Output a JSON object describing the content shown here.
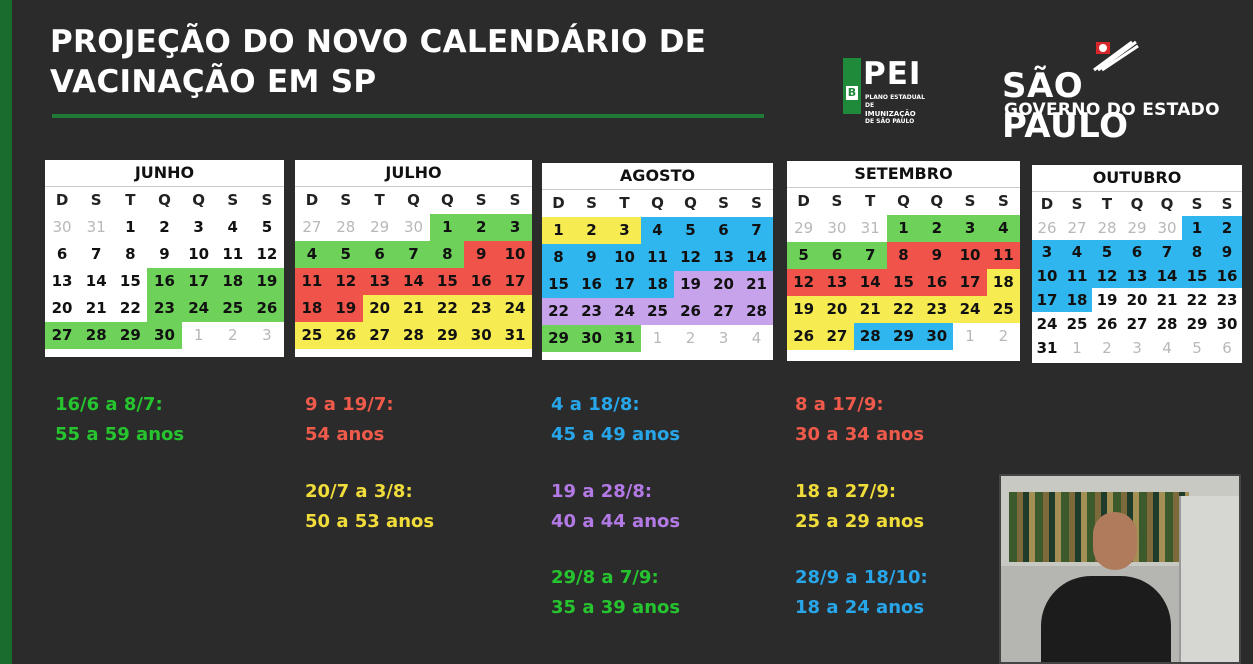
{
  "title": {
    "line1": "PROJEÇÃO DO NOVO CALENDÁRIO DE",
    "line2": "VACINAÇÃO EM SP"
  },
  "logos": {
    "pei": {
      "big": "PEI",
      "small1": "PLANO ESTADUAL DE",
      "small2": "IMUNIZAÇÃO",
      "small3": "DE SÃO PAULO"
    },
    "sp": {
      "name": "SÃO PAULO",
      "gov": "GOVERNO DO ESTADO"
    }
  },
  "weekdays": [
    "D",
    "S",
    "T",
    "Q",
    "Q",
    "S",
    "S"
  ],
  "months": [
    {
      "name": "JUNHO",
      "rows": [
        [
          [
            "30",
            "grey"
          ],
          [
            "31",
            "grey"
          ],
          [
            "1",
            ""
          ],
          [
            "2",
            ""
          ],
          [
            "3",
            ""
          ],
          [
            "4",
            ""
          ],
          [
            "5",
            ""
          ]
        ],
        [
          [
            "6",
            ""
          ],
          [
            "7",
            ""
          ],
          [
            "8",
            ""
          ],
          [
            "9",
            ""
          ],
          [
            "10",
            ""
          ],
          [
            "11",
            ""
          ],
          [
            "12",
            ""
          ]
        ],
        [
          [
            "13",
            ""
          ],
          [
            "14",
            ""
          ],
          [
            "15",
            ""
          ],
          [
            "16",
            "g"
          ],
          [
            "17",
            "g"
          ],
          [
            "18",
            "g"
          ],
          [
            "19",
            "g"
          ]
        ],
        [
          [
            "20",
            ""
          ],
          [
            "21",
            ""
          ],
          [
            "22",
            ""
          ],
          [
            "23",
            "g"
          ],
          [
            "24",
            "g"
          ],
          [
            "25",
            "g"
          ],
          [
            "26",
            "g"
          ]
        ],
        [
          [
            "27",
            "g"
          ],
          [
            "28",
            "g"
          ],
          [
            "29",
            "g"
          ],
          [
            "30",
            "g"
          ],
          [
            "1",
            "grey"
          ],
          [
            "2",
            "grey"
          ],
          [
            "3",
            "grey"
          ]
        ]
      ]
    },
    {
      "name": "JULHO",
      "rows": [
        [
          [
            "27",
            "grey"
          ],
          [
            "28",
            "grey"
          ],
          [
            "29",
            "grey"
          ],
          [
            "30",
            "grey"
          ],
          [
            "1",
            "g"
          ],
          [
            "2",
            "g"
          ],
          [
            "3",
            "g"
          ]
        ],
        [
          [
            "4",
            "g"
          ],
          [
            "5",
            "g"
          ],
          [
            "6",
            "g"
          ],
          [
            "7",
            "g"
          ],
          [
            "8",
            "g"
          ],
          [
            "9",
            "r"
          ],
          [
            "10",
            "r"
          ]
        ],
        [
          [
            "11",
            "r"
          ],
          [
            "12",
            "r"
          ],
          [
            "13",
            "r"
          ],
          [
            "14",
            "r"
          ],
          [
            "15",
            "r"
          ],
          [
            "16",
            "r"
          ],
          [
            "17",
            "r"
          ]
        ],
        [
          [
            "18",
            "r"
          ],
          [
            "19",
            "r"
          ],
          [
            "20",
            "y"
          ],
          [
            "21",
            "y"
          ],
          [
            "22",
            "y"
          ],
          [
            "23",
            "y"
          ],
          [
            "24",
            "y"
          ]
        ],
        [
          [
            "25",
            "y"
          ],
          [
            "26",
            "y"
          ],
          [
            "27",
            "y"
          ],
          [
            "28",
            "y"
          ],
          [
            "29",
            "y"
          ],
          [
            "30",
            "y"
          ],
          [
            "31",
            "y"
          ]
        ]
      ]
    },
    {
      "name": "AGOSTO",
      "rows": [
        [
          [
            "1",
            "y"
          ],
          [
            "2",
            "y"
          ],
          [
            "3",
            "y"
          ],
          [
            "4",
            "b"
          ],
          [
            "5",
            "b"
          ],
          [
            "6",
            "b"
          ],
          [
            "7",
            "b"
          ]
        ],
        [
          [
            "8",
            "b"
          ],
          [
            "9",
            "b"
          ],
          [
            "10",
            "b"
          ],
          [
            "11",
            "b"
          ],
          [
            "12",
            "b"
          ],
          [
            "13",
            "b"
          ],
          [
            "14",
            "b"
          ]
        ],
        [
          [
            "15",
            "b"
          ],
          [
            "16",
            "b"
          ],
          [
            "17",
            "b"
          ],
          [
            "18",
            "b"
          ],
          [
            "19",
            "p"
          ],
          [
            "20",
            "p"
          ],
          [
            "21",
            "p"
          ]
        ],
        [
          [
            "22",
            "p"
          ],
          [
            "23",
            "p"
          ],
          [
            "24",
            "p"
          ],
          [
            "25",
            "p"
          ],
          [
            "26",
            "p"
          ],
          [
            "27",
            "p"
          ],
          [
            "28",
            "p"
          ]
        ],
        [
          [
            "29",
            "g"
          ],
          [
            "30",
            "g"
          ],
          [
            "31",
            "g"
          ],
          [
            "1",
            "grey"
          ],
          [
            "2",
            "grey"
          ],
          [
            "3",
            "grey"
          ],
          [
            "4",
            "grey"
          ]
        ]
      ]
    },
    {
      "name": "SETEMBRO",
      "rows": [
        [
          [
            "29",
            "grey"
          ],
          [
            "30",
            "grey"
          ],
          [
            "31",
            "grey"
          ],
          [
            "1",
            "g"
          ],
          [
            "2",
            "g"
          ],
          [
            "3",
            "g"
          ],
          [
            "4",
            "g"
          ]
        ],
        [
          [
            "5",
            "g"
          ],
          [
            "6",
            "g"
          ],
          [
            "7",
            "g"
          ],
          [
            "8",
            "r"
          ],
          [
            "9",
            "r"
          ],
          [
            "10",
            "r"
          ],
          [
            "11",
            "r"
          ]
        ],
        [
          [
            "12",
            "r"
          ],
          [
            "13",
            "r"
          ],
          [
            "14",
            "r"
          ],
          [
            "15",
            "r"
          ],
          [
            "16",
            "r"
          ],
          [
            "17",
            "r"
          ],
          [
            "18",
            "y"
          ]
        ],
        [
          [
            "19",
            "y"
          ],
          [
            "20",
            "y"
          ],
          [
            "21",
            "y"
          ],
          [
            "22",
            "y"
          ],
          [
            "23",
            "y"
          ],
          [
            "24",
            "y"
          ],
          [
            "25",
            "y"
          ]
        ],
        [
          [
            "26",
            "y"
          ],
          [
            "27",
            "y"
          ],
          [
            "28",
            "b"
          ],
          [
            "29",
            "b"
          ],
          [
            "30",
            "b"
          ],
          [
            "1",
            "grey"
          ],
          [
            "2",
            "grey"
          ]
        ]
      ]
    },
    {
      "name": "OUTUBRO",
      "rows": [
        [
          [
            "26",
            "grey"
          ],
          [
            "27",
            "grey"
          ],
          [
            "28",
            "grey"
          ],
          [
            "29",
            "grey"
          ],
          [
            "30",
            "grey"
          ],
          [
            "1",
            "b"
          ],
          [
            "2",
            "b"
          ]
        ],
        [
          [
            "3",
            "b"
          ],
          [
            "4",
            "b"
          ],
          [
            "5",
            "b"
          ],
          [
            "6",
            "b"
          ],
          [
            "7",
            "b"
          ],
          [
            "8",
            "b"
          ],
          [
            "9",
            "b"
          ]
        ],
        [
          [
            "10",
            "b"
          ],
          [
            "11",
            "b"
          ],
          [
            "12",
            "b"
          ],
          [
            "13",
            "b"
          ],
          [
            "14",
            "b"
          ],
          [
            "15",
            "b"
          ],
          [
            "16",
            "b"
          ]
        ],
        [
          [
            "17",
            "b"
          ],
          [
            "18",
            "b"
          ],
          [
            "19",
            "n"
          ],
          [
            "20",
            "n"
          ],
          [
            "21",
            "n"
          ],
          [
            "22",
            "n"
          ],
          [
            "23",
            "n"
          ]
        ],
        [
          [
            "24",
            "n"
          ],
          [
            "25",
            "n"
          ],
          [
            "26",
            "n"
          ],
          [
            "27",
            "n"
          ],
          [
            "28",
            "n"
          ],
          [
            "29",
            "n"
          ],
          [
            "30",
            "n"
          ]
        ],
        [
          [
            "31",
            "n"
          ],
          [
            "1",
            "grey"
          ],
          [
            "2",
            "grey"
          ],
          [
            "3",
            "grey"
          ],
          [
            "4",
            "grey"
          ],
          [
            "5",
            "grey"
          ],
          [
            "6",
            "grey"
          ]
        ]
      ]
    }
  ],
  "schedule": {
    "jun": {
      "dates": "16/6 a 8/7:",
      "ages": "55 a 59 anos"
    },
    "jul1": {
      "dates": "9 a 19/7:",
      "ages": "54 anos"
    },
    "jul2": {
      "dates": "20/7 a 3/8:",
      "ages": "50 a 53 anos"
    },
    "ago1": {
      "dates": "4 a 18/8:",
      "ages": "45 a 49 anos"
    },
    "ago2": {
      "dates": "19 a 28/8:",
      "ages": "40 a 44 anos"
    },
    "ago3": {
      "dates": "29/8 a 7/9:",
      "ages": "35 a 39 anos"
    },
    "set1": {
      "dates": "8 a 17/9:",
      "ages": "30 a 34 anos"
    },
    "set2": {
      "dates": "18 a 27/9:",
      "ages": "25 a 29 anos"
    },
    "set3": {
      "dates": "28/9 a 18/10:",
      "ages": "18 a 24 anos"
    }
  },
  "colors": {
    "green": "#6dd15a",
    "red": "#f0534a",
    "yellow": "#f6ec52",
    "blue": "#2fb6ee",
    "purple": "#c7a3ec"
  }
}
